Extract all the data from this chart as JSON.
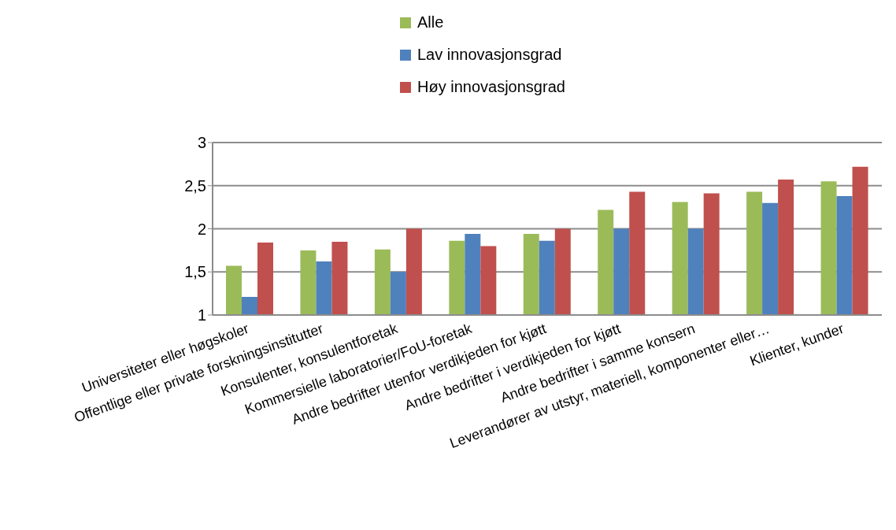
{
  "chart_data": {
    "type": "bar",
    "categories": [
      "Universiteter eller høgskoler",
      "Offentlige eller private forskningsinstitutter",
      "Konsulenter, konsulentforetak",
      "Kommersielle laboratorier/FoU-foretak",
      "Andre bedrifter utenfor verdikjeden for kjøtt",
      "Andre bedrifter i verdikjeden for kjøtt",
      "Andre bedrifter i samme konsern",
      "Leverandører av utstyr, materiell, komponenter eller…",
      "Klienter, kunder"
    ],
    "series": [
      {
        "name": "Alle",
        "color": "#9bbb59",
        "values": [
          1.57,
          1.75,
          1.76,
          1.86,
          1.94,
          2.22,
          2.31,
          2.43,
          2.55
        ]
      },
      {
        "name": "Lav innovasjonsgrad",
        "color": "#4f81bd",
        "values": [
          1.21,
          1.62,
          1.5,
          1.94,
          1.86,
          2.0,
          2.0,
          2.3,
          2.38
        ]
      },
      {
        "name": "Høy innovasjonsgrad",
        "color": "#c0504d",
        "values": [
          1.84,
          1.85,
          2.0,
          1.8,
          2.0,
          2.43,
          2.41,
          2.57,
          2.72
        ]
      }
    ],
    "ylim": [
      1,
      3
    ],
    "yticks": [
      1,
      {
        "value": 1.5,
        "label": "1,5"
      },
      2,
      {
        "value": 2.5,
        "label": "2,5"
      },
      3
    ],
    "grid": "y",
    "legend": "top"
  }
}
